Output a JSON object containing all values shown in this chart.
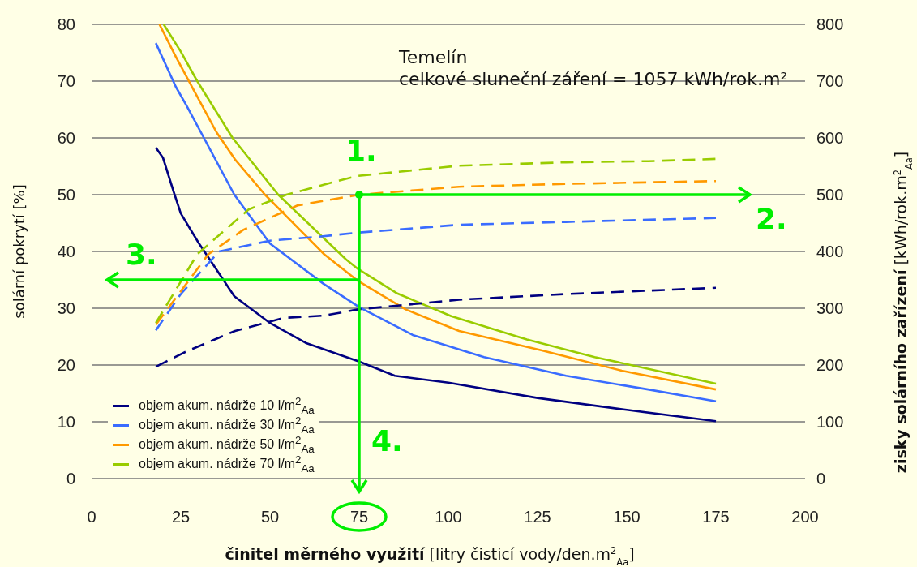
{
  "chart_data": {
    "type": "line",
    "xlabel": "činitel měrného využití [litry čisticí vody/den.m$^{2}$$_{Aa}$]",
    "ylabel": "solární pokrytí [%]",
    "y2label": "zisky solárního zařízení [kWh/rok.m$^{2}$$_{Aa}$]",
    "annotations": [
      "Temelín",
      "celkové sluneční záření = 1057 kWh/rok.m²",
      {
        "text": "1.",
        "x": 75,
        "y": 50
      },
      "2.",
      "3.",
      "4."
    ],
    "ref_lines": [
      {
        "axis": "x",
        "value": 75,
        "color": "#00ee00"
      },
      {
        "axis": "y",
        "value": 50,
        "color": "#00ee00"
      },
      {
        "axis": "y",
        "value": 35,
        "color": "#00ee00"
      }
    ],
    "xlim": [
      0,
      200
    ],
    "xticks": [
      0,
      25,
      50,
      75,
      100,
      125,
      150,
      175,
      200
    ],
    "ylim": [
      0,
      80
    ],
    "yticks": [
      0,
      10,
      20,
      30,
      40,
      50,
      60,
      70,
      80
    ],
    "y2lim": [
      0,
      800
    ],
    "y2ticks": [
      0,
      100,
      200,
      300,
      400,
      500,
      600,
      700,
      800
    ],
    "grid": "y",
    "legend": "bottom left",
    "marker": "none",
    "series": [
      {
        "name": "objem akum. nádrže 10 l/m$^{2}$$_{Aa}$",
        "color": "#000080",
        "line_style": "solid",
        "x": [
          18,
          20,
          23,
          25,
          30,
          40,
          50,
          60,
          75,
          85,
          100,
          125,
          150,
          175
        ],
        "values": [
          58.3,
          56.5,
          50.5,
          46.7,
          41.5,
          32.1,
          27.4,
          23.9,
          20.6,
          18.1,
          16.9,
          14.2,
          12.1,
          10.1
        ]
      },
      {
        "name": "objem akum. nádrže 30 l/m$^{2}$$_{Aa}$",
        "color": "#3a6cff",
        "line_style": "solid",
        "x": [
          18,
          23.6,
          26.6,
          31.9,
          40,
          50,
          65,
          75,
          90,
          110,
          133,
          156,
          175
        ],
        "values": [
          76.7,
          69,
          65.7,
          59.5,
          50,
          41.4,
          34.3,
          30.2,
          25.3,
          21.4,
          18.1,
          15.7,
          13.6
        ]
      },
      {
        "name": "objem akum. nádrže 50 l/m$^{2}$$_{Aa}$",
        "color": "#ff9900",
        "line_style": "solid",
        "x": [
          19,
          23.6,
          28.9,
          35,
          40.2,
          48.6,
          65.2,
          74.7,
          88,
          103,
          126,
          148.6,
          175
        ],
        "values": [
          80,
          74.3,
          68.1,
          61,
          56.2,
          50,
          39.5,
          34.8,
          29.8,
          26,
          22.6,
          19,
          15.7
        ]
      },
      {
        "name": "objem akum. nádrže 70 l/m$^{2}$$_{Aa}$",
        "color": "#99cc00",
        "line_style": "solid",
        "x": [
          20.2,
          25,
          29.6,
          39.5,
          52.3,
          71.3,
          74.7,
          85.7,
          100.8,
          122,
          141,
          175
        ],
        "values": [
          80,
          75.2,
          70,
          60,
          50,
          38.6,
          36.9,
          32.6,
          28.6,
          24.5,
          21.4,
          16.7
        ]
      },
      {
        "color": "#000080",
        "line_style": "dashed",
        "axis": "y2",
        "x": [
          18,
          26.6,
          40.2,
          53.9,
          65.2,
          74.7,
          103,
          133,
          175
        ],
        "values": [
          197,
          224,
          260,
          283,
          287,
          298,
          315,
          325,
          336
        ]
      },
      {
        "color": "#3a6cff",
        "line_style": "dashed",
        "axis": "y2",
        "x": [
          18,
          25,
          35.7,
          50,
          63.7,
          74.3,
          103,
          133,
          175
        ],
        "values": [
          261,
          325,
          400,
          419,
          426,
          433,
          447,
          452,
          459
        ]
      },
      {
        "color": "#ff9900",
        "line_style": "dashed",
        "axis": "y2",
        "x": [
          18,
          32.7,
          42.5,
          57.7,
          75,
          103,
          133,
          175
        ],
        "values": [
          271,
          395,
          438,
          481,
          500,
          514,
          519,
          524
        ]
      },
      {
        "color": "#99cc00",
        "line_style": "dashed",
        "axis": "y2",
        "x": [
          18,
          29.6,
          44,
          54.6,
          74.3,
          103,
          133,
          156,
          175
        ],
        "values": [
          274,
          395,
          474,
          500,
          533,
          551,
          557,
          559,
          563
        ]
      }
    ]
  }
}
